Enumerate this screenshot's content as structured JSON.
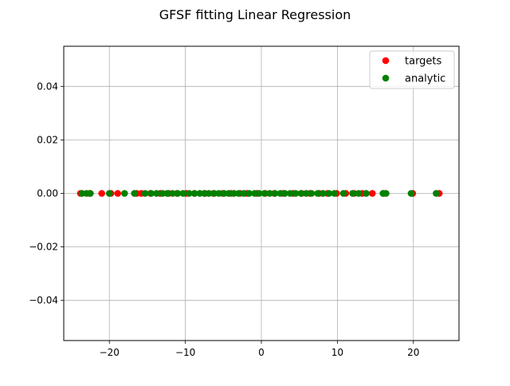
{
  "chart_data": {
    "type": "scatter",
    "title": "GFSF fitting Linear Regression",
    "xlabel": "",
    "ylabel": "",
    "xlim": [
      -26,
      26
    ],
    "ylim": [
      -0.055,
      0.055
    ],
    "x_ticks": [
      -20,
      -10,
      0,
      10,
      20
    ],
    "x_tick_labels": [
      "−20",
      "−10",
      "0",
      "10",
      "20"
    ],
    "y_ticks": [
      -0.04,
      -0.02,
      0.0,
      0.02,
      0.04
    ],
    "y_tick_labels": [
      "−0.04",
      "−0.02",
      "0.00",
      "0.02",
      "0.04"
    ],
    "grid": true,
    "legend_position": "top-right",
    "series": [
      {
        "name": "targets",
        "color": "#ff0000",
        "x": [
          -23.8,
          -22.6,
          -21.0,
          -19.8,
          -18.9,
          -16.4,
          -15.8,
          -14.6,
          -13.3,
          -12.2,
          -11.1,
          -9.9,
          -8.8,
          -7.4,
          -6.3,
          -5.1,
          -4.0,
          -2.8,
          -1.9,
          -0.6,
          0.5,
          1.7,
          2.9,
          4.2,
          5.3,
          6.4,
          7.6,
          8.7,
          9.9,
          11.1,
          12.2,
          13.3,
          14.6,
          16.1,
          19.9,
          23.4
        ],
        "y": [
          0,
          0,
          0,
          0,
          0,
          0,
          0,
          0,
          0,
          0,
          0,
          0,
          0,
          0,
          0,
          0,
          0,
          0,
          0,
          0,
          0,
          0,
          0,
          0,
          0,
          0,
          0,
          0,
          0,
          0,
          0,
          0,
          0,
          0,
          0,
          0
        ]
      },
      {
        "name": "analytic",
        "color": "#008000",
        "x": [
          -23.6,
          -23.0,
          -22.5,
          -20.0,
          -18.0,
          -16.7,
          -15.3,
          -14.5,
          -13.8,
          -13.0,
          -12.4,
          -11.7,
          -11.0,
          -10.3,
          -9.5,
          -8.8,
          -8.1,
          -7.5,
          -6.9,
          -6.2,
          -5.6,
          -4.9,
          -4.3,
          -3.6,
          -3.0,
          -2.3,
          -1.6,
          -0.9,
          -0.3,
          0.4,
          1.1,
          1.8,
          2.5,
          3.1,
          3.8,
          4.5,
          5.2,
          5.9,
          6.6,
          7.4,
          8.1,
          8.9,
          9.6,
          10.8,
          12.0,
          12.8,
          13.8,
          16.0,
          16.4,
          19.7,
          23.0
        ]
      }
    ]
  }
}
